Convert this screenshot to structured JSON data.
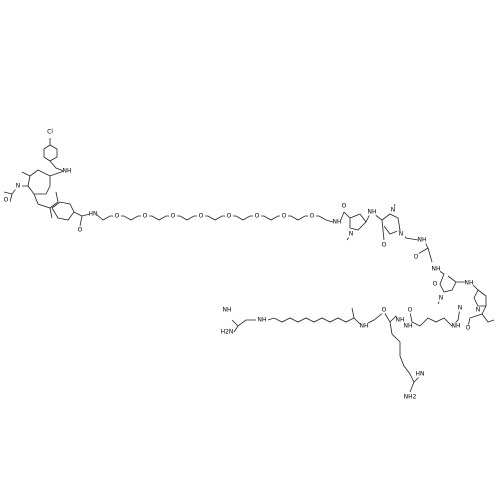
{
  "molecule": {
    "atoms": [
      "Cl",
      "NH",
      "N",
      "O",
      "O",
      "HN",
      "O",
      "O",
      "O",
      "O",
      "O",
      "O",
      "O",
      "O",
      "NH",
      "O",
      "N",
      "NH",
      "N",
      "N",
      "O",
      "NH",
      "O",
      "NH",
      "O",
      "N",
      "NH",
      "N",
      "N",
      "O",
      "NH",
      "O",
      "NH",
      "O",
      "NH",
      "NH",
      "NH",
      "H2N",
      "NH",
      "HN",
      "NH2"
    ]
  }
}
